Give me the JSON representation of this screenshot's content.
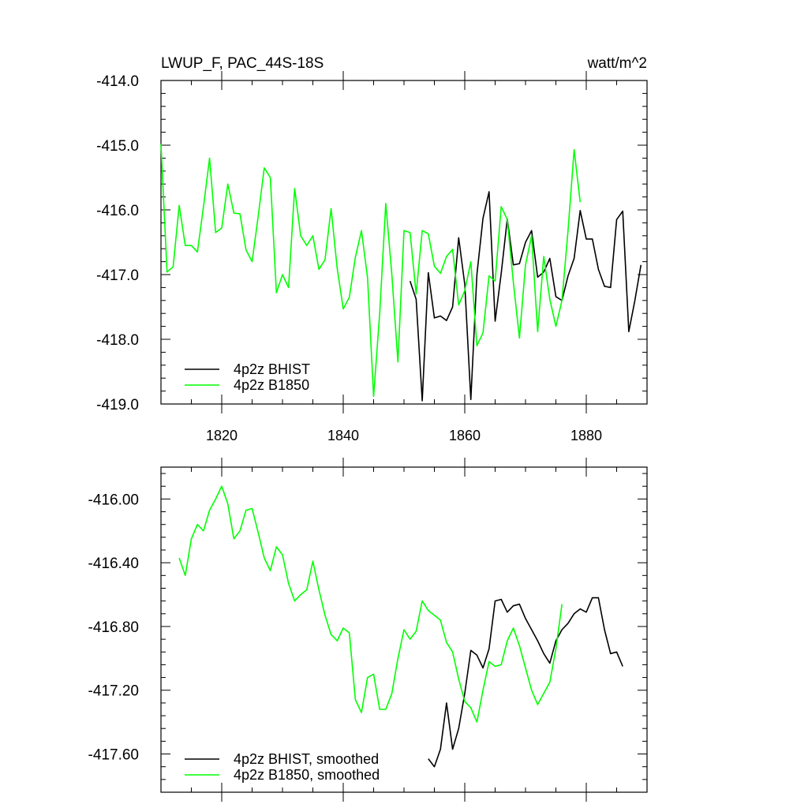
{
  "figure": {
    "title_left": "LWUP_F, PAC_44S-18S",
    "title_right": "watt/m^2"
  },
  "colors": {
    "bhist": "#000000",
    "b1850": "#00ff00"
  },
  "chart_data": [
    {
      "type": "line",
      "panel": "raw",
      "xlim": [
        1810,
        1890
      ],
      "ylim": [
        -419.0,
        -414.0
      ],
      "x_ticks": [
        1820,
        1840,
        1860,
        1880
      ],
      "x_tick_labels": [
        "1820",
        "1840",
        "1860",
        "1880"
      ],
      "y_ticks": [
        -414.0,
        -415.0,
        -416.0,
        -417.0,
        -418.0,
        -419.0
      ],
      "y_tick_labels": [
        "-414.0",
        "-415.0",
        "-416.0",
        "-417.0",
        "-418.0",
        "-419.0"
      ],
      "legend_position": "bottom-left",
      "series": [
        {
          "name": "4p2z BHIST",
          "color": "#000000",
          "x": [
            1851,
            1852,
            1853,
            1854,
            1855,
            1856,
            1857,
            1858,
            1859,
            1860,
            1861,
            1862,
            1863,
            1864,
            1865,
            1866,
            1867,
            1868,
            1869,
            1870,
            1871,
            1872,
            1873,
            1874,
            1875,
            1876,
            1877,
            1878,
            1879,
            1880,
            1881,
            1882,
            1883,
            1884,
            1885,
            1886,
            1887,
            1888,
            1889
          ],
          "values": [
            -417.1,
            -417.38,
            -418.95,
            -416.97,
            -417.67,
            -417.64,
            -417.71,
            -417.5,
            -416.43,
            -417.15,
            -418.93,
            -417.0,
            -416.13,
            -415.72,
            -417.72,
            -416.98,
            -416.14,
            -416.85,
            -416.83,
            -416.5,
            -416.32,
            -417.04,
            -416.96,
            -416.75,
            -417.34,
            -417.4,
            -417.02,
            -416.75,
            -416.01,
            -416.45,
            -416.45,
            -416.92,
            -417.18,
            -417.2,
            -416.15,
            -416.02,
            -417.88,
            -417.4,
            -416.85
          ]
        },
        {
          "name": "4p2z B1850",
          "color": "#00ff00",
          "x": [
            1810,
            1811,
            1812,
            1813,
            1814,
            1815,
            1816,
            1817,
            1818,
            1819,
            1820,
            1821,
            1822,
            1823,
            1824,
            1825,
            1826,
            1827,
            1828,
            1829,
            1830,
            1831,
            1832,
            1833,
            1834,
            1835,
            1836,
            1837,
            1838,
            1839,
            1840,
            1841,
            1842,
            1843,
            1844,
            1845,
            1846,
            1847,
            1848,
            1849,
            1850,
            1851,
            1852,
            1853,
            1854,
            1855,
            1856,
            1857,
            1858,
            1859,
            1860,
            1861,
            1862,
            1863,
            1864,
            1865,
            1866,
            1867,
            1868,
            1869,
            1870,
            1871,
            1872,
            1873,
            1874,
            1875,
            1876,
            1877,
            1878,
            1879
          ],
          "values": [
            -414.98,
            -416.96,
            -416.88,
            -415.93,
            -416.55,
            -416.55,
            -416.65,
            -415.95,
            -415.2,
            -416.35,
            -416.28,
            -415.6,
            -416.05,
            -416.06,
            -416.62,
            -416.8,
            -416.1,
            -415.35,
            -415.5,
            -417.28,
            -417.0,
            -417.2,
            -415.67,
            -416.4,
            -416.55,
            -416.4,
            -416.92,
            -416.77,
            -415.98,
            -416.9,
            -417.53,
            -417.35,
            -416.73,
            -416.32,
            -417.05,
            -418.88,
            -417.6,
            -415.9,
            -417.0,
            -418.35,
            -416.32,
            -416.35,
            -417.3,
            -416.32,
            -416.37,
            -416.87,
            -416.98,
            -416.72,
            -416.61,
            -417.47,
            -417.25,
            -416.8,
            -418.1,
            -417.9,
            -417.02,
            -417.1,
            -415.95,
            -416.15,
            -417.12,
            -417.98,
            -416.85,
            -416.4,
            -417.88,
            -416.72,
            -417.38,
            -417.8,
            -417.4,
            -416.32,
            -415.07,
            -415.88
          ]
        }
      ]
    },
    {
      "type": "line",
      "panel": "smoothed",
      "xlim": [
        1810,
        1890
      ],
      "ylim": [
        -417.84,
        -415.8
      ],
      "x_ticks": [
        1820,
        1840,
        1860,
        1880
      ],
      "x_tick_labels": [
        "",
        "",
        "",
        ""
      ],
      "y_ticks": [
        -416.0,
        -416.4,
        -416.8,
        -417.2,
        -417.6
      ],
      "y_tick_labels": [
        "-416.00",
        "-416.40",
        "-416.80",
        "-417.20",
        "-417.60"
      ],
      "legend_position": "bottom-left",
      "series": [
        {
          "name": "4p2z BHIST, smoothed",
          "color": "#000000",
          "x": [
            1854,
            1855,
            1856,
            1857,
            1858,
            1859,
            1860,
            1861,
            1862,
            1863,
            1864,
            1865,
            1866,
            1867,
            1868,
            1869,
            1870,
            1871,
            1872,
            1873,
            1874,
            1875,
            1876,
            1877,
            1878,
            1879,
            1880,
            1881,
            1882,
            1883,
            1884,
            1885,
            1886
          ],
          "values": [
            -417.63,
            -417.68,
            -417.57,
            -417.28,
            -417.57,
            -417.44,
            -417.22,
            -416.95,
            -416.98,
            -417.06,
            -416.94,
            -416.64,
            -416.63,
            -416.71,
            -416.67,
            -416.66,
            -416.75,
            -416.82,
            -416.89,
            -416.97,
            -417.03,
            -416.89,
            -416.82,
            -416.78,
            -416.72,
            -416.69,
            -416.71,
            -416.62,
            -416.62,
            -416.82,
            -416.97,
            -416.96,
            -417.05
          ]
        },
        {
          "name": "4p2z B1850, smoothed",
          "color": "#00ff00",
          "x": [
            1813,
            1814,
            1815,
            1816,
            1817,
            1818,
            1819,
            1820,
            1821,
            1822,
            1823,
            1824,
            1825,
            1826,
            1827,
            1828,
            1829,
            1830,
            1831,
            1832,
            1833,
            1834,
            1835,
            1836,
            1837,
            1838,
            1839,
            1840,
            1841,
            1842,
            1843,
            1844,
            1845,
            1846,
            1847,
            1848,
            1849,
            1850,
            1851,
            1852,
            1853,
            1854,
            1855,
            1856,
            1857,
            1858,
            1859,
            1860,
            1861,
            1862,
            1863,
            1864,
            1865,
            1866,
            1867,
            1868,
            1869,
            1870,
            1871,
            1872,
            1873,
            1874,
            1875,
            1876
          ],
          "values": [
            -416.37,
            -416.48,
            -416.25,
            -416.16,
            -416.2,
            -416.07,
            -416.0,
            -415.92,
            -416.03,
            -416.25,
            -416.2,
            -416.07,
            -416.06,
            -416.21,
            -416.37,
            -416.45,
            -416.3,
            -416.35,
            -416.53,
            -416.64,
            -416.6,
            -416.57,
            -416.39,
            -416.57,
            -416.73,
            -416.85,
            -416.89,
            -416.81,
            -416.84,
            -417.26,
            -417.34,
            -417.12,
            -417.1,
            -417.32,
            -417.32,
            -417.22,
            -417.0,
            -416.82,
            -416.88,
            -416.83,
            -416.64,
            -416.7,
            -416.73,
            -416.76,
            -416.9,
            -416.96,
            -417.13,
            -417.27,
            -417.31,
            -417.4,
            -417.2,
            -417.02,
            -417.05,
            -417.04,
            -416.89,
            -416.81,
            -416.92,
            -417.06,
            -417.2,
            -417.29,
            -417.22,
            -417.15,
            -416.94,
            -416.66
          ]
        }
      ]
    }
  ]
}
